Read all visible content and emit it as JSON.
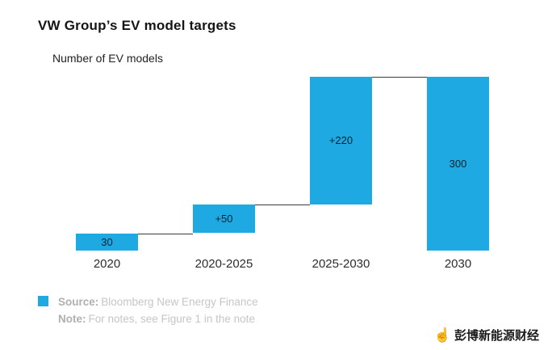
{
  "header": {
    "title": "VW Group’s EV model targets",
    "subtitle": "Number of EV models"
  },
  "chart_data": {
    "type": "bar",
    "subtype": "waterfall",
    "title": "VW Group’s EV model targets",
    "axis_note": "Number of EV models",
    "categories": [
      "2020",
      "2020-2025",
      "2025-2030",
      "2030"
    ],
    "bars": [
      {
        "category": "2020",
        "start": 0,
        "end": 30,
        "label": "30"
      },
      {
        "category": "2020-2025",
        "start": 30,
        "end": 80,
        "label": "+50"
      },
      {
        "category": "2025-2030",
        "start": 80,
        "end": 300,
        "label": "+220"
      },
      {
        "category": "2030",
        "start": 0,
        "end": 300,
        "label": "300"
      }
    ],
    "ylim": [
      0,
      300
    ],
    "grid": false,
    "legend_position": "none",
    "bar_color": "#1FA9E2",
    "connector_color": "#3c3c3c"
  },
  "footer": {
    "swatch_color": "#1FA9E2",
    "source_label": "Source:",
    "source_text": "Bloomberg New Energy Finance",
    "note_label": "Note:",
    "note_text": "For notes, see Figure 1 in the note"
  },
  "watermark": {
    "icon": "pointing-hand-icon",
    "icon_glyph": "☝",
    "text": "彭博新能源财经"
  }
}
